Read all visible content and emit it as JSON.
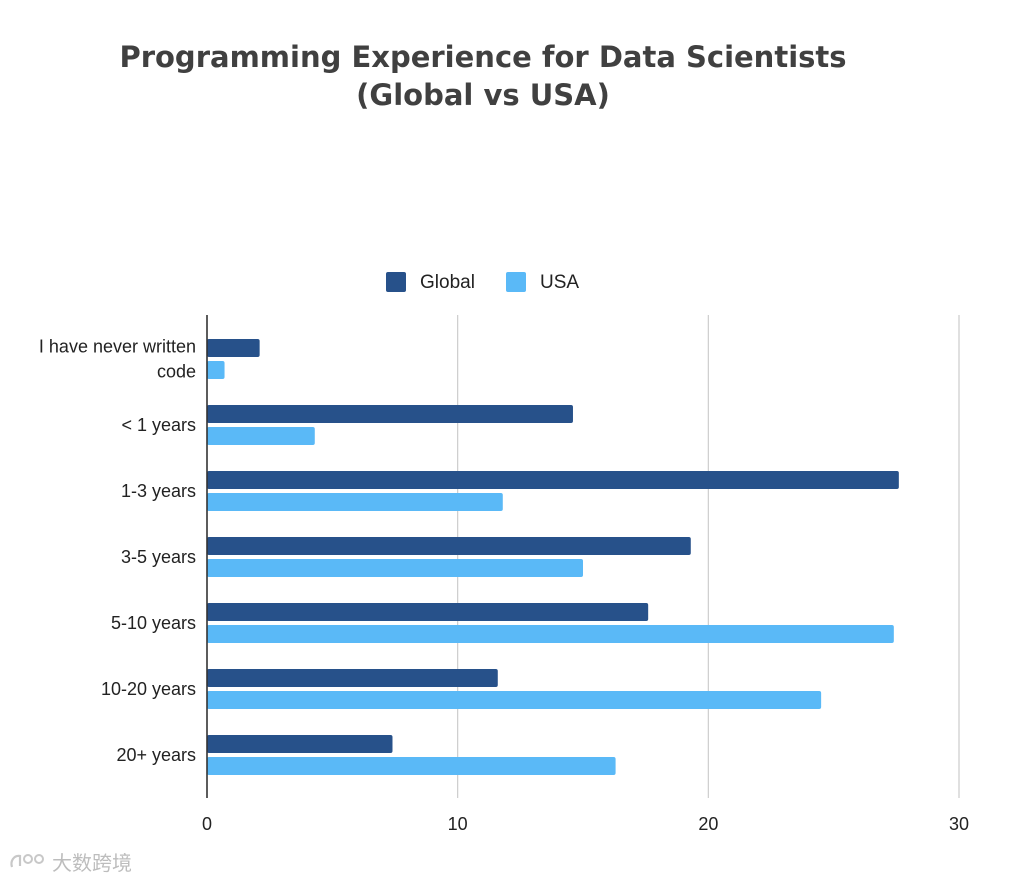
{
  "chart_data": {
    "type": "bar",
    "orientation": "horizontal",
    "title_lines": [
      "Programming Experience for Data Scientists",
      "(Global vs USA)"
    ],
    "categories": [
      "I have never written code",
      "< 1 years",
      "1-3 years",
      "3-5 years",
      "5-10 years",
      "10-20 years",
      "20+ years"
    ],
    "category_label_lines": [
      [
        "I have never written",
        "code"
      ],
      [
        "< 1 years"
      ],
      [
        "1-3 years"
      ],
      [
        "3-5 years"
      ],
      [
        "5-10 years"
      ],
      [
        "10-20 years"
      ],
      [
        "20+ years"
      ]
    ],
    "series": [
      {
        "name": "Global",
        "color": "#27518a",
        "values": [
          2.1,
          14.6,
          27.6,
          19.3,
          17.6,
          11.6,
          7.4
        ]
      },
      {
        "name": "USA",
        "color": "#5ab9f7",
        "values": [
          0.7,
          4.3,
          11.8,
          15.0,
          27.4,
          24.5,
          16.3
        ]
      }
    ],
    "xlim": [
      0,
      30
    ],
    "xticks": [
      0,
      10,
      20,
      30
    ],
    "grid": true,
    "legend_position": "top-center",
    "xlabel": "",
    "ylabel": ""
  },
  "colors": {
    "axis": "#333333",
    "grid": "#cccccc",
    "text": "#222222",
    "title": "#404040"
  },
  "watermark": {
    "text": "大数跨境",
    "icon": "logo-mark-icon"
  }
}
